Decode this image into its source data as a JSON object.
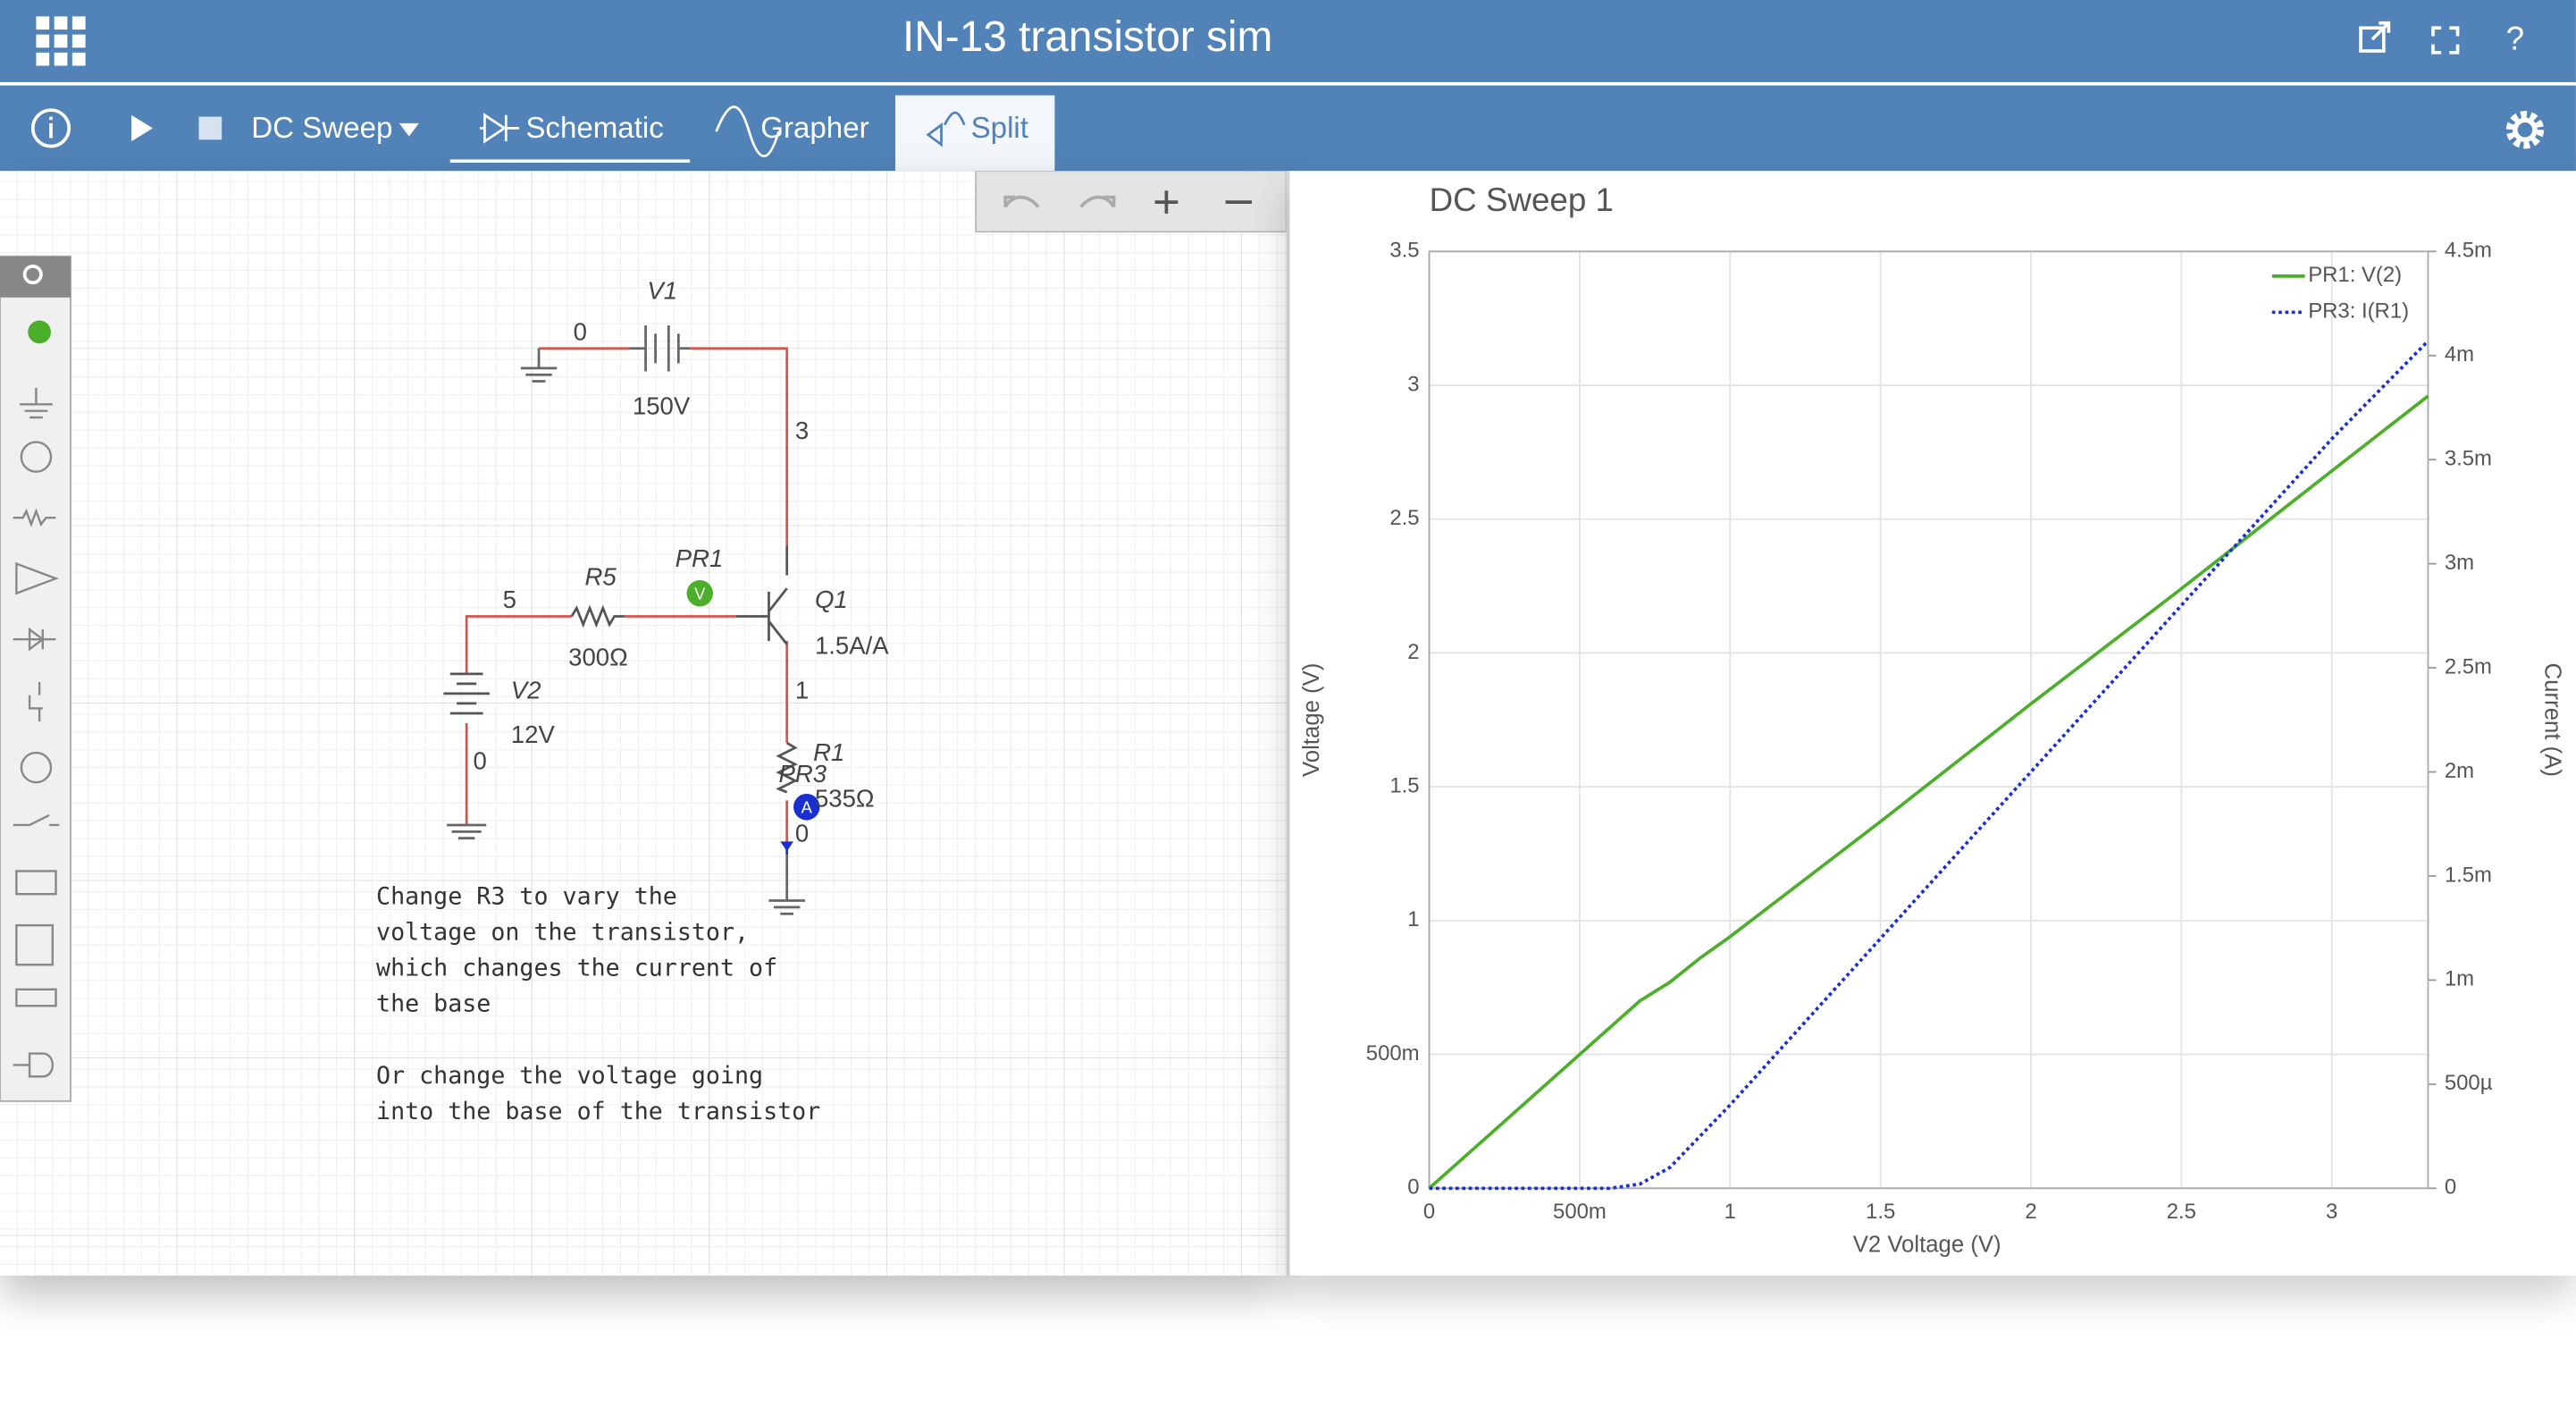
{
  "header": {
    "title": "IN-13 transistor sim",
    "help": "?"
  },
  "toolbar": {
    "analysis": "DC Sweep",
    "tabs": [
      "Schematic",
      "Grapher",
      "Split"
    ]
  },
  "schematic": {
    "labels": {
      "v1": "V1",
      "v1_node": "0",
      "v1_value": "150V",
      "node3": "3",
      "r5": "R5",
      "pr1": "PR1",
      "pr1_badge": "V",
      "node5": "5",
      "q1": "Q1",
      "q1_value": "1.5A/A",
      "r5_value": "300Ω",
      "v2": "V2",
      "node1": "1",
      "v2_value": "12V",
      "v2_node": "0",
      "r1": "R1",
      "pr3": "PR3",
      "r1_value": "535Ω",
      "pr3_badge": "A",
      "node0": "0"
    },
    "note": [
      [
        "Change R3 to vary the",
        "voltage on the transistor,",
        "which changes the current of",
        "the base"
      ],
      [
        "Or change the voltage going",
        "into the base of the transistor"
      ]
    ]
  },
  "chart_data": {
    "type": "line",
    "title": "DC Sweep 1",
    "x_label": "V2 Voltage (V)",
    "y_label": "Voltage (V)",
    "y2_label": "Current (A)",
    "x": [
      0,
      0.5,
      0.6,
      0.7,
      0.8,
      0.9,
      1,
      1.5,
      2,
      2.5,
      3,
      3.32
    ],
    "xlim": [
      0,
      3.32
    ],
    "xticks": [
      0,
      {
        "value": 0.5,
        "label": "500m"
      },
      1,
      1.5,
      2,
      2.5,
      3
    ],
    "ylim": [
      0,
      3.5
    ],
    "yticks": [
      0,
      {
        "value": 0.5,
        "label": "500m"
      },
      1,
      1.5,
      2,
      2.5,
      3,
      3.5
    ],
    "y2lim": [
      0,
      0.0045
    ],
    "y2ticks": [
      0,
      {
        "value": 0.0005,
        "label": "500µ"
      },
      {
        "value": 0.001,
        "label": "1m"
      },
      {
        "value": 0.0015,
        "label": "1.5m"
      },
      {
        "value": 0.002,
        "label": "2m"
      },
      {
        "value": 0.0025,
        "label": "2.5m"
      },
      {
        "value": 0.003,
        "label": "3m"
      },
      {
        "value": 0.0035,
        "label": "3.5m"
      },
      {
        "value": 0.004,
        "label": "4m"
      },
      {
        "value": 0.0045,
        "label": "4.5m"
      }
    ],
    "grid": true,
    "legend": "top-right",
    "series": [
      {
        "name": "PR1: V(2)",
        "color": "#4caf2a",
        "dash": false,
        "values": [
          0,
          0.5,
          0.6,
          0.7,
          0.77,
          0.86,
          0.94,
          1.37,
          1.81,
          2.24,
          2.68,
          2.96
        ]
      },
      {
        "name": "PR3: I(R1)",
        "color": "#1a2fd0",
        "dash": true,
        "axis": "y2",
        "values": [
          0,
          0,
          0,
          2e-05,
          0.0001,
          0.00025,
          0.0004,
          0.0012,
          0.002,
          0.0028,
          0.0036,
          0.00407
        ]
      }
    ]
  }
}
